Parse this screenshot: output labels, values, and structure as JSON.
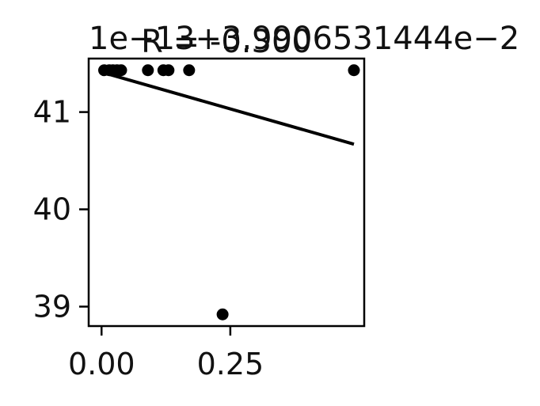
{
  "chart_data": {
    "type": "scatter",
    "title": "R = -0.300",
    "offset_text": "1e−13+3.9906531444e−2",
    "xlabel": "",
    "ylabel": "",
    "xlim": [
      -0.025,
      0.51
    ],
    "ylim": [
      38.8,
      41.55
    ],
    "xticks": [
      0.0,
      0.25
    ],
    "xtick_labels": [
      "0.00",
      "0.25"
    ],
    "yticks": [
      39,
      40,
      41
    ],
    "ytick_labels": [
      "39",
      "40",
      "41"
    ],
    "grid": false,
    "points": [
      {
        "x": 0.005,
        "y": 41.43
      },
      {
        "x": 0.015,
        "y": 41.43
      },
      {
        "x": 0.022,
        "y": 41.43
      },
      {
        "x": 0.03,
        "y": 41.43
      },
      {
        "x": 0.038,
        "y": 41.43
      },
      {
        "x": 0.09,
        "y": 41.43
      },
      {
        "x": 0.12,
        "y": 41.43
      },
      {
        "x": 0.13,
        "y": 41.43
      },
      {
        "x": 0.17,
        "y": 41.43
      },
      {
        "x": 0.235,
        "y": 38.92
      },
      {
        "x": 0.49,
        "y": 41.43
      }
    ],
    "trendline": {
      "x": [
        0.0,
        0.49
      ],
      "y": [
        41.41,
        40.67
      ]
    },
    "colors": {
      "marker": "#000000",
      "line": "#000000",
      "axes": "#000000",
      "text": "#111111"
    }
  }
}
